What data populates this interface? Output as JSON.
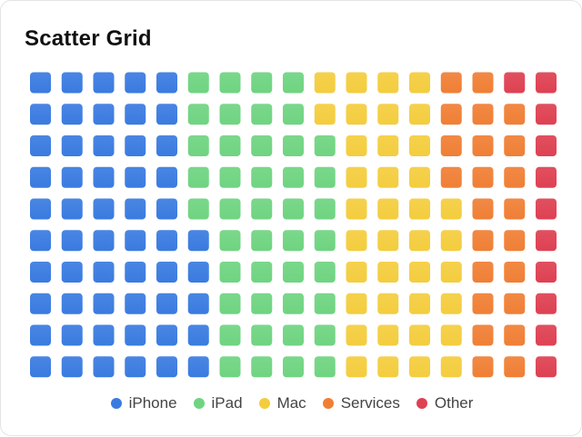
{
  "title": "Scatter Grid",
  "chart_data": {
    "type": "waffle",
    "title": "Scatter Grid",
    "rows": 10,
    "columns": 17,
    "total_cells": 170,
    "series": [
      {
        "name": "iPhone",
        "cells": 55,
        "color": "#3a7be0"
      },
      {
        "name": "iPad",
        "cells": 43,
        "color": "#6fd481"
      },
      {
        "name": "Mac",
        "cells": 38,
        "color": "#f4cd3e"
      },
      {
        "name": "Services",
        "cells": 23,
        "color": "#f07f35"
      },
      {
        "name": "Other",
        "cells": 11,
        "color": "#de4152"
      }
    ],
    "legend": "bottom-center",
    "grid": false
  }
}
